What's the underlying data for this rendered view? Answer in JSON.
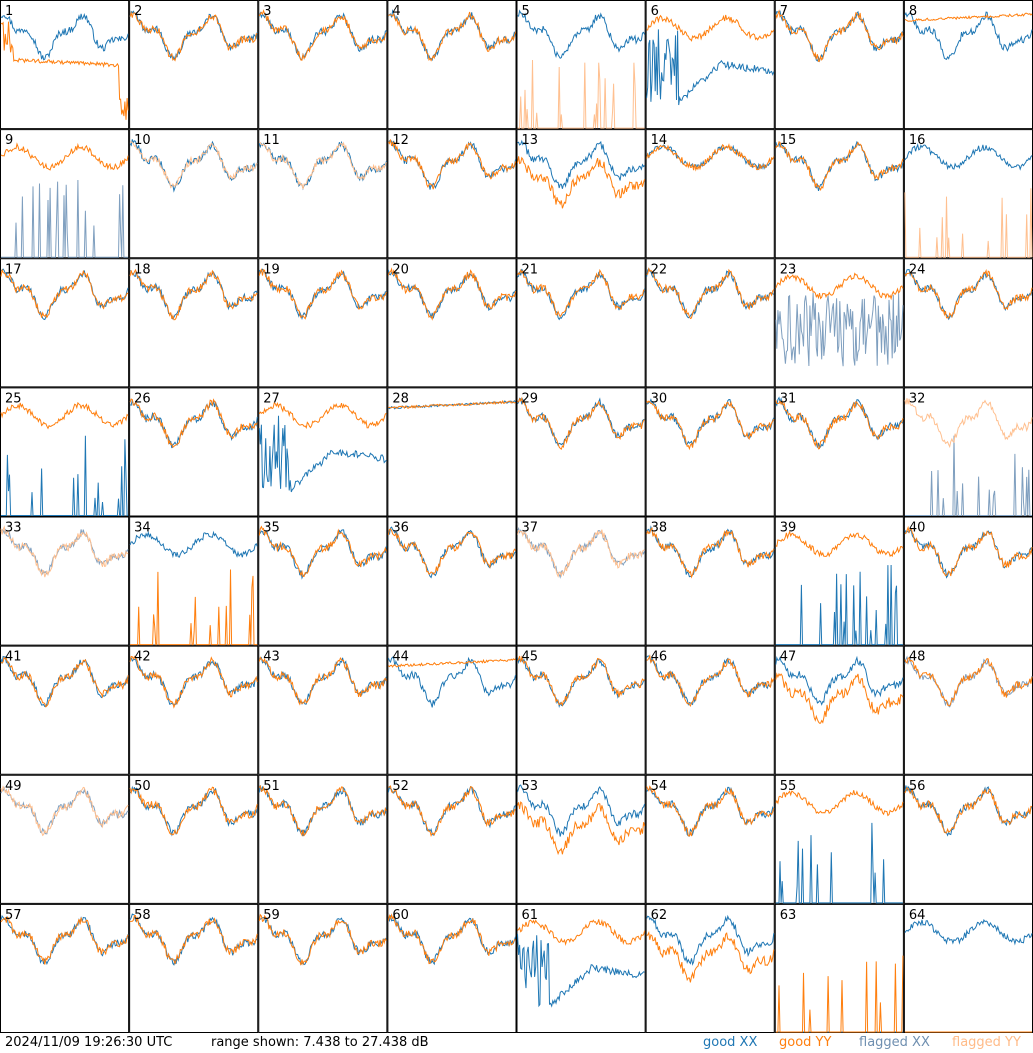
{
  "timestamp": "2024/11/09 19:26:30 UTC",
  "range_text": "range shown: 7.438 to 27.438 dB",
  "legend": {
    "good_xx": "good XX",
    "good_yy": "good YY",
    "flagged_xx": "flagged XX",
    "flagged_yy": "flagged YY"
  },
  "colors": {
    "good_xx": "#1f77b4",
    "good_yy": "#ff7f0e",
    "flagged_xx": "#7f9fbf",
    "flagged_yy": "#ffc090"
  },
  "chart_data": {
    "type": "line",
    "x": "spectrum channel (unlabeled)",
    "ylim": [
      7.438,
      27.438
    ],
    "y_unit": "dB",
    "grid": "8x8 small multiples, one per antenna",
    "panels": [
      {
        "label": "1",
        "xx": "good",
        "yy": "good",
        "xx_shape": "normal",
        "yy_shape": "sag"
      },
      {
        "label": "2",
        "xx": "good",
        "yy": "good",
        "xx_shape": "normal",
        "yy_shape": "normal"
      },
      {
        "label": "3",
        "xx": "good",
        "yy": "good",
        "xx_shape": "normal",
        "yy_shape": "normal"
      },
      {
        "label": "4",
        "xx": "good",
        "yy": "good",
        "xx_shape": "normal",
        "yy_shape": "normal"
      },
      {
        "label": "5",
        "xx": "good",
        "yy": "flagged",
        "xx_shape": "normal",
        "yy_shape": "spikes"
      },
      {
        "label": "6",
        "xx": "good",
        "yy": "good",
        "xx_shape": "deep",
        "yy_shape": "high"
      },
      {
        "label": "7",
        "xx": "good",
        "yy": "good",
        "xx_shape": "normal",
        "yy_shape": "normal"
      },
      {
        "label": "8",
        "xx": "good",
        "yy": "good",
        "xx_shape": "normal",
        "yy_shape": "flat"
      },
      {
        "label": "9",
        "xx": "flagged",
        "yy": "good",
        "xx_shape": "spikes",
        "yy_shape": "high"
      },
      {
        "label": "10",
        "xx": "good",
        "yy": "flagged",
        "xx_shape": "normal",
        "yy_shape": "normal"
      },
      {
        "label": "11",
        "xx": "good",
        "yy": "flagged",
        "xx_shape": "normal",
        "yy_shape": "normal"
      },
      {
        "label": "12",
        "xx": "good",
        "yy": "good",
        "xx_shape": "normal",
        "yy_shape": "normal"
      },
      {
        "label": "13",
        "xx": "good",
        "yy": "good",
        "xx_shape": "normal",
        "yy_shape": "low"
      },
      {
        "label": "14",
        "xx": "good",
        "yy": "good",
        "xx_shape": "high",
        "yy_shape": "high"
      },
      {
        "label": "15",
        "xx": "good",
        "yy": "good",
        "xx_shape": "normal",
        "yy_shape": "normal"
      },
      {
        "label": "16",
        "xx": "good",
        "yy": "flagged",
        "xx_shape": "high",
        "yy_shape": "spikes"
      },
      {
        "label": "17",
        "xx": "good",
        "yy": "good",
        "xx_shape": "normal",
        "yy_shape": "normal"
      },
      {
        "label": "18",
        "xx": "good",
        "yy": "good",
        "xx_shape": "normal",
        "yy_shape": "normal"
      },
      {
        "label": "19",
        "xx": "good",
        "yy": "good",
        "xx_shape": "normal",
        "yy_shape": "normal"
      },
      {
        "label": "20",
        "xx": "good",
        "yy": "good",
        "xx_shape": "normal",
        "yy_shape": "normal"
      },
      {
        "label": "21",
        "xx": "good",
        "yy": "good",
        "xx_shape": "normal",
        "yy_shape": "normal"
      },
      {
        "label": "22",
        "xx": "good",
        "yy": "good",
        "xx_shape": "normal",
        "yy_shape": "normal"
      },
      {
        "label": "23",
        "xx": "flagged",
        "yy": "good",
        "xx_shape": "noisy",
        "yy_shape": "high"
      },
      {
        "label": "24",
        "xx": "good",
        "yy": "good",
        "xx_shape": "normal",
        "yy_shape": "normal"
      },
      {
        "label": "25",
        "xx": "good",
        "yy": "good",
        "xx_shape": "spikes",
        "yy_shape": "high"
      },
      {
        "label": "26",
        "xx": "good",
        "yy": "good",
        "xx_shape": "normal",
        "yy_shape": "normal"
      },
      {
        "label": "27",
        "xx": "good",
        "yy": "good",
        "xx_shape": "deep",
        "yy_shape": "high"
      },
      {
        "label": "28",
        "xx": "good",
        "yy": "good",
        "xx_shape": "flat",
        "yy_shape": "flat"
      },
      {
        "label": "29",
        "xx": "good",
        "yy": "good",
        "xx_shape": "normal",
        "yy_shape": "normal"
      },
      {
        "label": "30",
        "xx": "good",
        "yy": "good",
        "xx_shape": "normal",
        "yy_shape": "normal"
      },
      {
        "label": "31",
        "xx": "good",
        "yy": "good",
        "xx_shape": "normal",
        "yy_shape": "normal"
      },
      {
        "label": "32",
        "xx": "flagged",
        "yy": "flagged",
        "xx_shape": "spikes",
        "yy_shape": "normal"
      },
      {
        "label": "33",
        "xx": "flagged",
        "yy": "flagged",
        "xx_shape": "normal",
        "yy_shape": "normal"
      },
      {
        "label": "34",
        "xx": "good",
        "yy": "good",
        "xx_shape": "high",
        "yy_shape": "spikes"
      },
      {
        "label": "35",
        "xx": "good",
        "yy": "good",
        "xx_shape": "normal",
        "yy_shape": "normal"
      },
      {
        "label": "36",
        "xx": "good",
        "yy": "good",
        "xx_shape": "normal",
        "yy_shape": "normal"
      },
      {
        "label": "37",
        "xx": "flagged",
        "yy": "flagged",
        "xx_shape": "normal",
        "yy_shape": "normal"
      },
      {
        "label": "38",
        "xx": "good",
        "yy": "good",
        "xx_shape": "normal",
        "yy_shape": "normal"
      },
      {
        "label": "39",
        "xx": "good",
        "yy": "good",
        "xx_shape": "spikes",
        "yy_shape": "high"
      },
      {
        "label": "40",
        "xx": "good",
        "yy": "good",
        "xx_shape": "normal",
        "yy_shape": "normal"
      },
      {
        "label": "41",
        "xx": "good",
        "yy": "good",
        "xx_shape": "normal",
        "yy_shape": "normal"
      },
      {
        "label": "42",
        "xx": "good",
        "yy": "good",
        "xx_shape": "normal",
        "yy_shape": "normal"
      },
      {
        "label": "43",
        "xx": "good",
        "yy": "good",
        "xx_shape": "normal",
        "yy_shape": "normal"
      },
      {
        "label": "44",
        "xx": "good",
        "yy": "good",
        "xx_shape": "normal",
        "yy_shape": "flat"
      },
      {
        "label": "45",
        "xx": "good",
        "yy": "good",
        "xx_shape": "normal",
        "yy_shape": "normal"
      },
      {
        "label": "46",
        "xx": "good",
        "yy": "good",
        "xx_shape": "normal",
        "yy_shape": "normal"
      },
      {
        "label": "47",
        "xx": "good",
        "yy": "good",
        "xx_shape": "normal",
        "yy_shape": "low"
      },
      {
        "label": "48",
        "xx": "flagged",
        "yy": "good",
        "xx_shape": "normal",
        "yy_shape": "normal"
      },
      {
        "label": "49",
        "xx": "flagged",
        "yy": "flagged",
        "xx_shape": "normal",
        "yy_shape": "normal"
      },
      {
        "label": "50",
        "xx": "good",
        "yy": "good",
        "xx_shape": "normal",
        "yy_shape": "normal"
      },
      {
        "label": "51",
        "xx": "good",
        "yy": "good",
        "xx_shape": "normal",
        "yy_shape": "normal"
      },
      {
        "label": "52",
        "xx": "good",
        "yy": "good",
        "xx_shape": "normal",
        "yy_shape": "normal"
      },
      {
        "label": "53",
        "xx": "good",
        "yy": "good",
        "xx_shape": "normal",
        "yy_shape": "low"
      },
      {
        "label": "54",
        "xx": "good",
        "yy": "good",
        "xx_shape": "normal",
        "yy_shape": "normal"
      },
      {
        "label": "55",
        "xx": "good",
        "yy": "good",
        "xx_shape": "spikes",
        "yy_shape": "high"
      },
      {
        "label": "56",
        "xx": "good",
        "yy": "good",
        "xx_shape": "normal",
        "yy_shape": "normal"
      },
      {
        "label": "57",
        "xx": "good",
        "yy": "good",
        "xx_shape": "normal",
        "yy_shape": "normal"
      },
      {
        "label": "58",
        "xx": "good",
        "yy": "good",
        "xx_shape": "normal",
        "yy_shape": "normal"
      },
      {
        "label": "59",
        "xx": "good",
        "yy": "good",
        "xx_shape": "normal",
        "yy_shape": "normal"
      },
      {
        "label": "60",
        "xx": "good",
        "yy": "good",
        "xx_shape": "normal",
        "yy_shape": "normal"
      },
      {
        "label": "61",
        "xx": "good",
        "yy": "good",
        "xx_shape": "deep",
        "yy_shape": "high"
      },
      {
        "label": "62",
        "xx": "good",
        "yy": "good",
        "xx_shape": "normal",
        "yy_shape": "low"
      },
      {
        "label": "63",
        "xx": "good",
        "yy": "good",
        "xx_shape": "none",
        "yy_shape": "spikes"
      },
      {
        "label": "64",
        "xx": "good",
        "yy": "good",
        "xx_shape": "high",
        "yy_shape": "none"
      }
    ]
  }
}
